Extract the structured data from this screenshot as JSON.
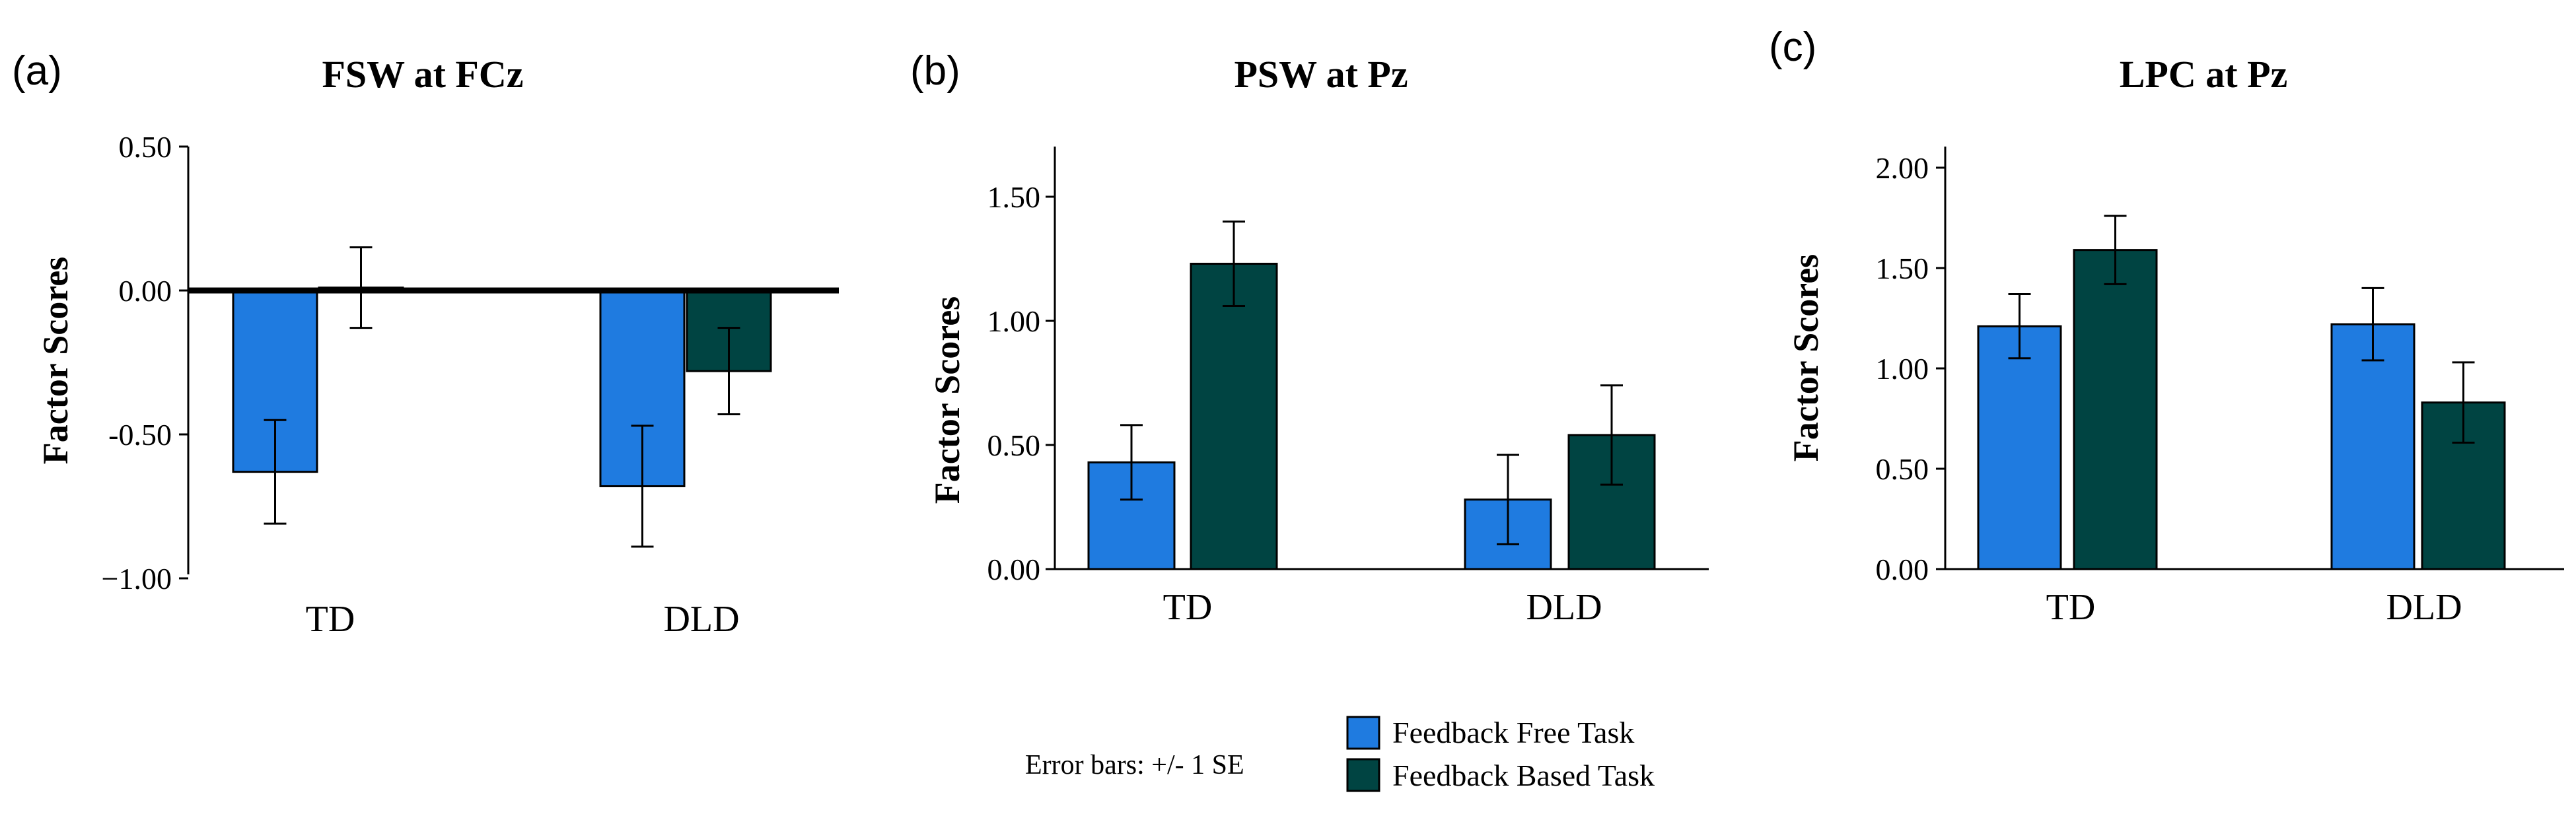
{
  "colors": {
    "free": "#1f7be0",
    "based": "#004442",
    "axis": "#000000"
  },
  "legend": {
    "items": [
      {
        "label": "Feedback Free Task",
        "color": "#1f7be0"
      },
      {
        "label": "Feedback Based Task",
        "color": "#004442"
      }
    ],
    "note": "Error bars: +/- 1 SE"
  },
  "chart_data": [
    {
      "type": "bar",
      "panel_label": "(a)",
      "title": "FSW at FCz",
      "xlabel": "",
      "ylabel": "Factor Scores",
      "categories": [
        "TD",
        "DLD"
      ],
      "ylim": [
        -1.0,
        0.5
      ],
      "yticks": [
        -1.0,
        -0.5,
        0.0,
        0.5
      ],
      "ytick_labels": [
        "−1.00",
        "-0.50",
        "0.00",
        "0.50"
      ],
      "zero_line": true,
      "series": [
        {
          "name": "Feedback Free Task",
          "values": [
            -0.63,
            -0.68
          ],
          "se": [
            0.18,
            0.21
          ]
        },
        {
          "name": "Feedback Based Task",
          "values": [
            0.01,
            -0.28
          ],
          "se": [
            0.14,
            0.15
          ]
        }
      ]
    },
    {
      "type": "bar",
      "panel_label": "(b)",
      "title": "PSW at Pz",
      "xlabel": "",
      "ylabel": "Factor Scores",
      "categories": [
        "TD",
        "DLD"
      ],
      "ylim": [
        0,
        1.75
      ],
      "yticks": [
        0.0,
        0.5,
        1.0,
        1.5
      ],
      "ytick_labels": [
        "0.00",
        "0.50",
        "1.00",
        "1.50"
      ],
      "zero_line": false,
      "series": [
        {
          "name": "Feedback Free Task",
          "values": [
            0.43,
            0.28
          ],
          "se": [
            0.15,
            0.18
          ]
        },
        {
          "name": "Feedback Based Task",
          "values": [
            1.23,
            0.54
          ],
          "se": [
            0.17,
            0.2
          ]
        }
      ]
    },
    {
      "type": "bar",
      "panel_label": "(c)",
      "title": "LPC at Pz",
      "xlabel": "",
      "ylabel": "Factor Scores",
      "categories": [
        "TD",
        "DLD"
      ],
      "ylim": [
        0,
        2.1
      ],
      "yticks": [
        0.0,
        0.5,
        1.0,
        1.5,
        2.0
      ],
      "ytick_labels": [
        "0.00",
        "0.50",
        "1.00",
        "1.50",
        "2.00"
      ],
      "zero_line": false,
      "series": [
        {
          "name": "Feedback Free Task",
          "values": [
            1.21,
            1.22
          ],
          "se": [
            0.16,
            0.18
          ]
        },
        {
          "name": "Feedback Based Task",
          "values": [
            1.59,
            0.83
          ],
          "se": [
            0.17,
            0.2
          ]
        }
      ]
    }
  ]
}
